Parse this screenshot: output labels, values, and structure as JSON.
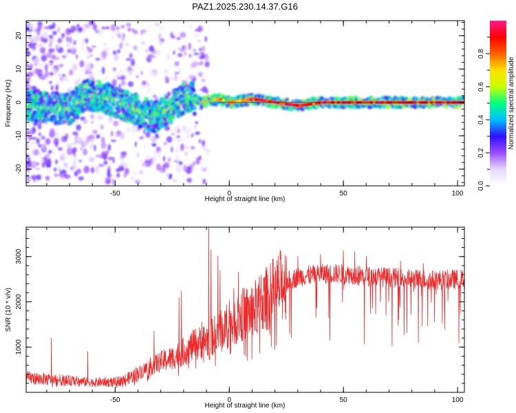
{
  "figure": {
    "title": "PAZ1.2025.230.14.37.G16"
  },
  "chart_data": [
    {
      "type": "heatmap",
      "xlabel": "Height of straight line (km)",
      "ylabel": "Frequency (Hz)",
      "xlim": [
        -89,
        103
      ],
      "ylim": [
        -25,
        24.5
      ],
      "x_ticks": [
        -50,
        0,
        50,
        100
      ],
      "x_tick_labels": [
        "-50",
        "0",
        "50",
        "100"
      ],
      "y_ticks": [
        20,
        10,
        0,
        -10,
        -20
      ],
      "y_tick_labels": [
        "20",
        "10",
        "0",
        "-10",
        "-20"
      ],
      "colorbar": {
        "label": "Normalized spectral amplitude",
        "range": [
          0,
          1
        ],
        "ticks": [
          0.0,
          0.2,
          0.4,
          0.6,
          0.8
        ],
        "tick_labels": [
          "0.0",
          "0.2",
          "0.4",
          "0.6",
          "0.8"
        ],
        "colormap": [
          "#ffffff",
          "#e8d8ff",
          "#9a4dff",
          "#3010ff",
          "#00c0ff",
          "#00ff80",
          "#c8ff00",
          "#ffe000",
          "#ff6000",
          "#ff0000",
          "#ff1a8c"
        ]
      },
      "ridge_frequency_hz": {
        "x": [
          -89,
          -80,
          -70,
          -62,
          -55,
          -45,
          -38,
          -33,
          -28,
          -22,
          -18,
          -12,
          -5,
          0,
          10,
          20,
          30,
          40,
          50,
          60,
          70,
          80,
          90,
          103
        ],
        "y": [
          -1,
          -1.5,
          -2,
          2.5,
          1.5,
          -1,
          -3,
          -4.5,
          -2.5,
          0,
          2,
          0,
          1,
          0,
          1,
          0,
          -1,
          0,
          0,
          0,
          0,
          0,
          0,
          0
        ]
      },
      "grid": false,
      "legend": "none"
    },
    {
      "type": "line",
      "xlabel": "Height of straight line (km)",
      "ylabel": "SNR (10 * v/v)",
      "xlim": [
        -89,
        103
      ],
      "ylim": [
        0,
        3650
      ],
      "x_ticks": [
        -50,
        0,
        50,
        100
      ],
      "x_tick_labels": [
        "-50",
        "0",
        "50",
        "100"
      ],
      "y_ticks": [
        1000,
        2000,
        3000
      ],
      "y_tick_labels": [
        "1000",
        "2000",
        "3000"
      ],
      "series": [
        {
          "color": "#ee2a2a",
          "trend": {
            "x": [
              -89,
              -80,
              -70,
              -60,
              -50,
              -45,
              -40,
              -35,
              -30,
              -25,
              -20,
              -15,
              -10,
              -5,
              0,
              5,
              10,
              15,
              20,
              25,
              30,
              40,
              50,
              60,
              70,
              80,
              90,
              103
            ],
            "y": [
              320,
              290,
              260,
              220,
              230,
              290,
              420,
              560,
              680,
              760,
              900,
              1050,
              1150,
              1300,
              1500,
              1700,
              1800,
              2000,
              2250,
              2450,
              2550,
              2620,
              2620,
              2570,
              2540,
              2500,
              2480,
              2500
            ]
          },
          "spikes": {
            "x": [
              -78,
              -62,
              -33,
              -22,
              -21,
              -12,
              -10,
              -9,
              -8,
              -5,
              -4,
              -2,
              0,
              2,
              4,
              6,
              8,
              10,
              12,
              14,
              18,
              25,
              30,
              40,
              50,
              55,
              60,
              75,
              85
            ],
            "y": [
              1200,
              900,
              1350,
              2090,
              2230,
              1550,
              1100,
              3650,
              3150,
              3010,
              2700,
              1800,
              2030,
              2300,
              2650,
              2300,
              700,
              2100,
              1350,
              2600,
              2850,
              3000,
              3000,
              3050,
              3130,
              3110,
              3000,
              2900,
              2850
            ]
          }
        }
      ],
      "grid": false,
      "legend": "none"
    }
  ]
}
